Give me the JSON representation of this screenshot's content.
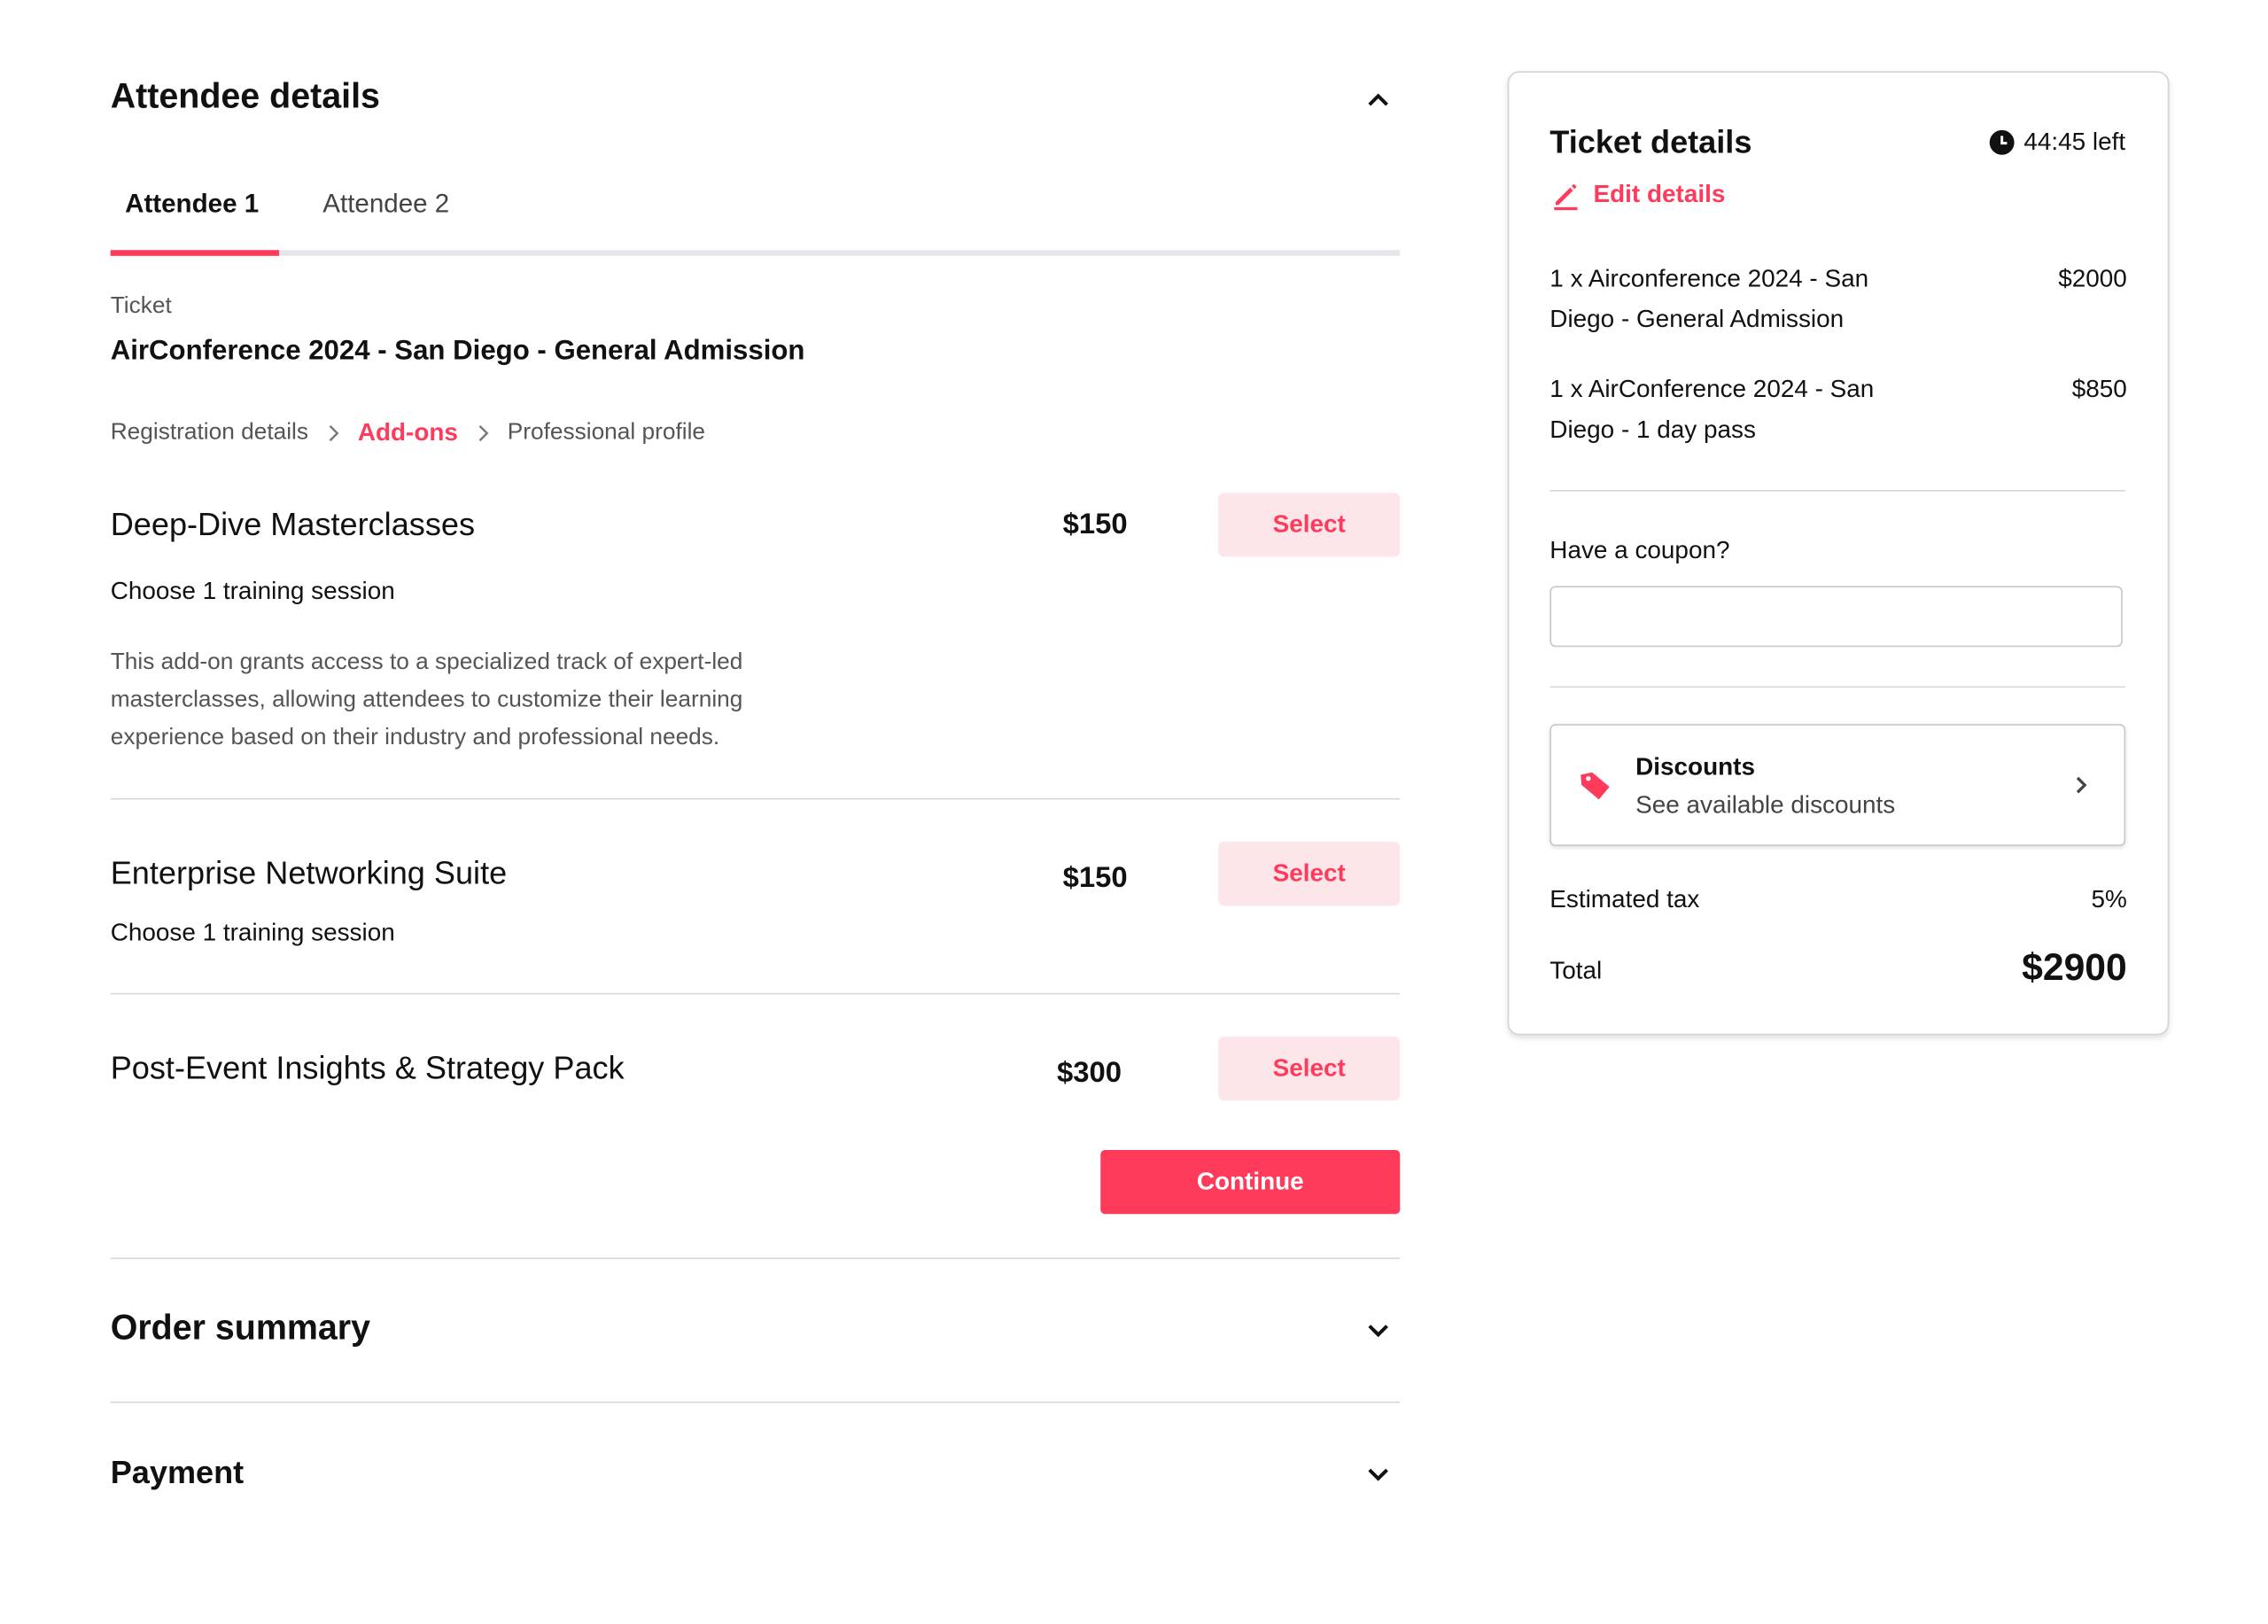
{
  "attendee_section": {
    "title": "Attendee details",
    "tabs": [
      {
        "label": "Attendee 1",
        "active": true
      },
      {
        "label": "Attendee 2",
        "active": false
      }
    ],
    "ticket_label": "Ticket",
    "ticket_name": "AirConference 2024 - San Diego - General Admission",
    "steps": [
      {
        "label": "Registration details",
        "active": false
      },
      {
        "label": "Add-ons",
        "active": true
      },
      {
        "label": "Professional profile",
        "active": false
      }
    ],
    "addons": [
      {
        "title": "Deep-Dive Masterclasses",
        "price": "$150",
        "button": "Select",
        "subtitle": "Choose 1 training session",
        "description": [
          "This add-on grants access to a specialized track of expert-led",
          "masterclasses, allowing attendees to customize their learning",
          "experience based on their industry and professional needs."
        ]
      },
      {
        "title": "Enterprise Networking Suite",
        "price": "$150",
        "button": "Select",
        "subtitle": "Choose 1 training session"
      },
      {
        "title": "Post-Event Insights & Strategy Pack",
        "price": "$300",
        "button": "Select"
      }
    ],
    "continue_label": "Continue"
  },
  "order_summary": {
    "title": "Order summary"
  },
  "payment": {
    "title": "Payment"
  },
  "ticket_details": {
    "title": "Ticket details",
    "timer": "44:45 left",
    "edit_label": "Edit details",
    "line_items": [
      {
        "line1": "1 x Airconference 2024 - San",
        "line2": "Diego - General Admission",
        "price": "$2000"
      },
      {
        "line1": "1 x AirConference 2024 - San",
        "line2": "Diego - 1 day pass",
        "price": "$850"
      }
    ],
    "coupon_label": "Have a coupon?",
    "coupon_value": "",
    "discounts": {
      "title": "Discounts",
      "subtitle": "See available discounts"
    },
    "tax_label": "Estimated tax",
    "tax_value": "5%",
    "total_label": "Total",
    "total_value": "$2900"
  },
  "colors": {
    "accent": "#ff3b5c",
    "accent_light": "#fde6ea",
    "divider": "#d8d8dc"
  },
  "icons": [
    "chevron-up-icon",
    "chevron-right-icon",
    "chevron-down-icon",
    "clock-icon",
    "pencil-icon",
    "tag-icon"
  ]
}
